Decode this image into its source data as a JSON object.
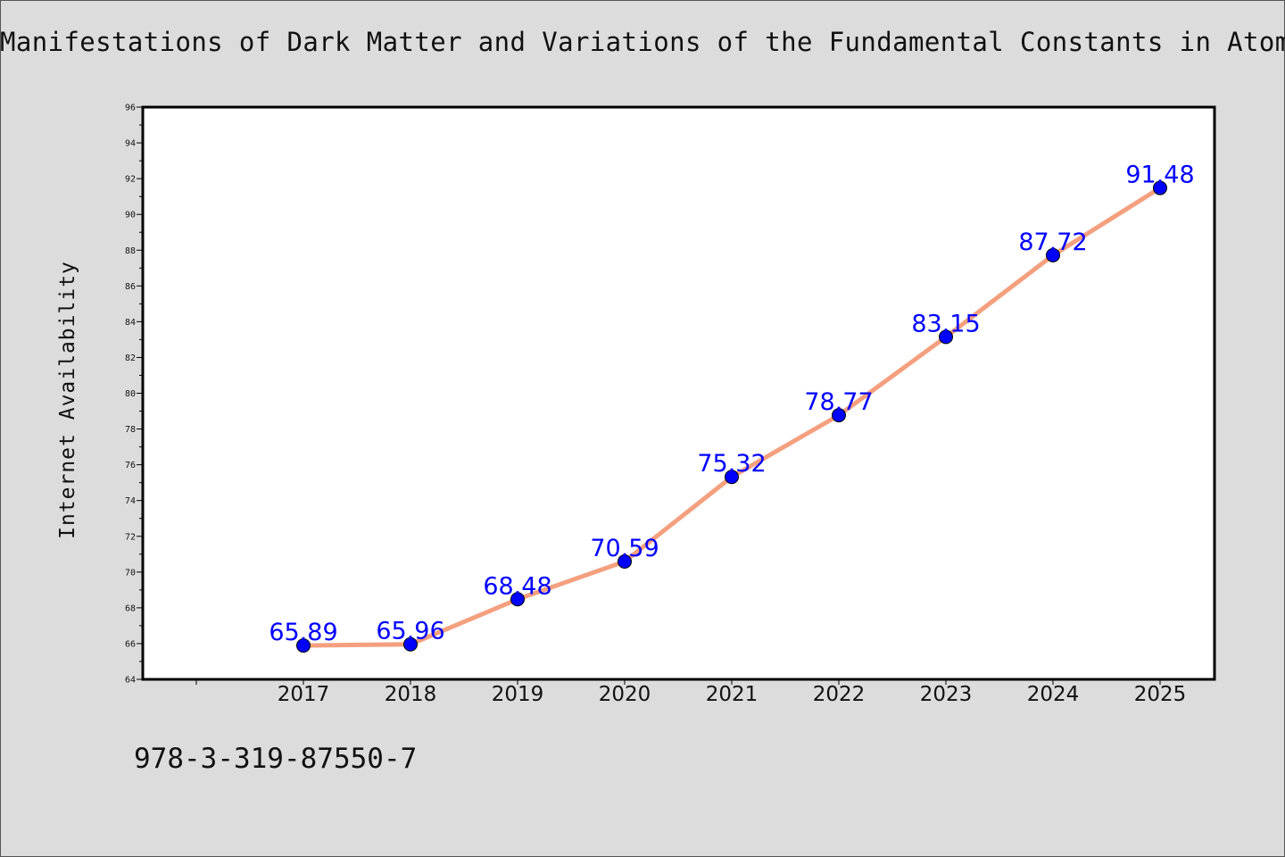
{
  "chart_data": {
    "type": "line",
    "title": "Manifestations of Dark Matter and Variations of the Fundamental Constants in Atoms and Astrophysical Phenomena",
    "xlabel": "",
    "ylabel": "Internet Availability",
    "categories": [
      "2017",
      "2018",
      "2019",
      "2020",
      "2021",
      "2022",
      "2023",
      "2024",
      "2025"
    ],
    "series": [
      {
        "values": [
          65.89,
          65.96,
          68.48,
          70.59,
          75.32,
          78.77,
          83.15,
          87.72,
          91.48
        ]
      }
    ],
    "ylim": [
      64,
      96
    ],
    "ytick_step": 2,
    "grid": false,
    "legend": "none",
    "data_labels": [
      "65.89",
      "65.96",
      "68.48",
      "70.59",
      "75.32",
      "78.77",
      "83.15",
      "87.72",
      "91.48"
    ],
    "colors": {
      "line": "#f4a07f",
      "marker": "#0000ff",
      "label": "#0000ff",
      "background": "#dcdcdc",
      "plot_area": "#ffffff"
    }
  },
  "footer": {
    "isbn": "978-3-319-87550-7"
  }
}
